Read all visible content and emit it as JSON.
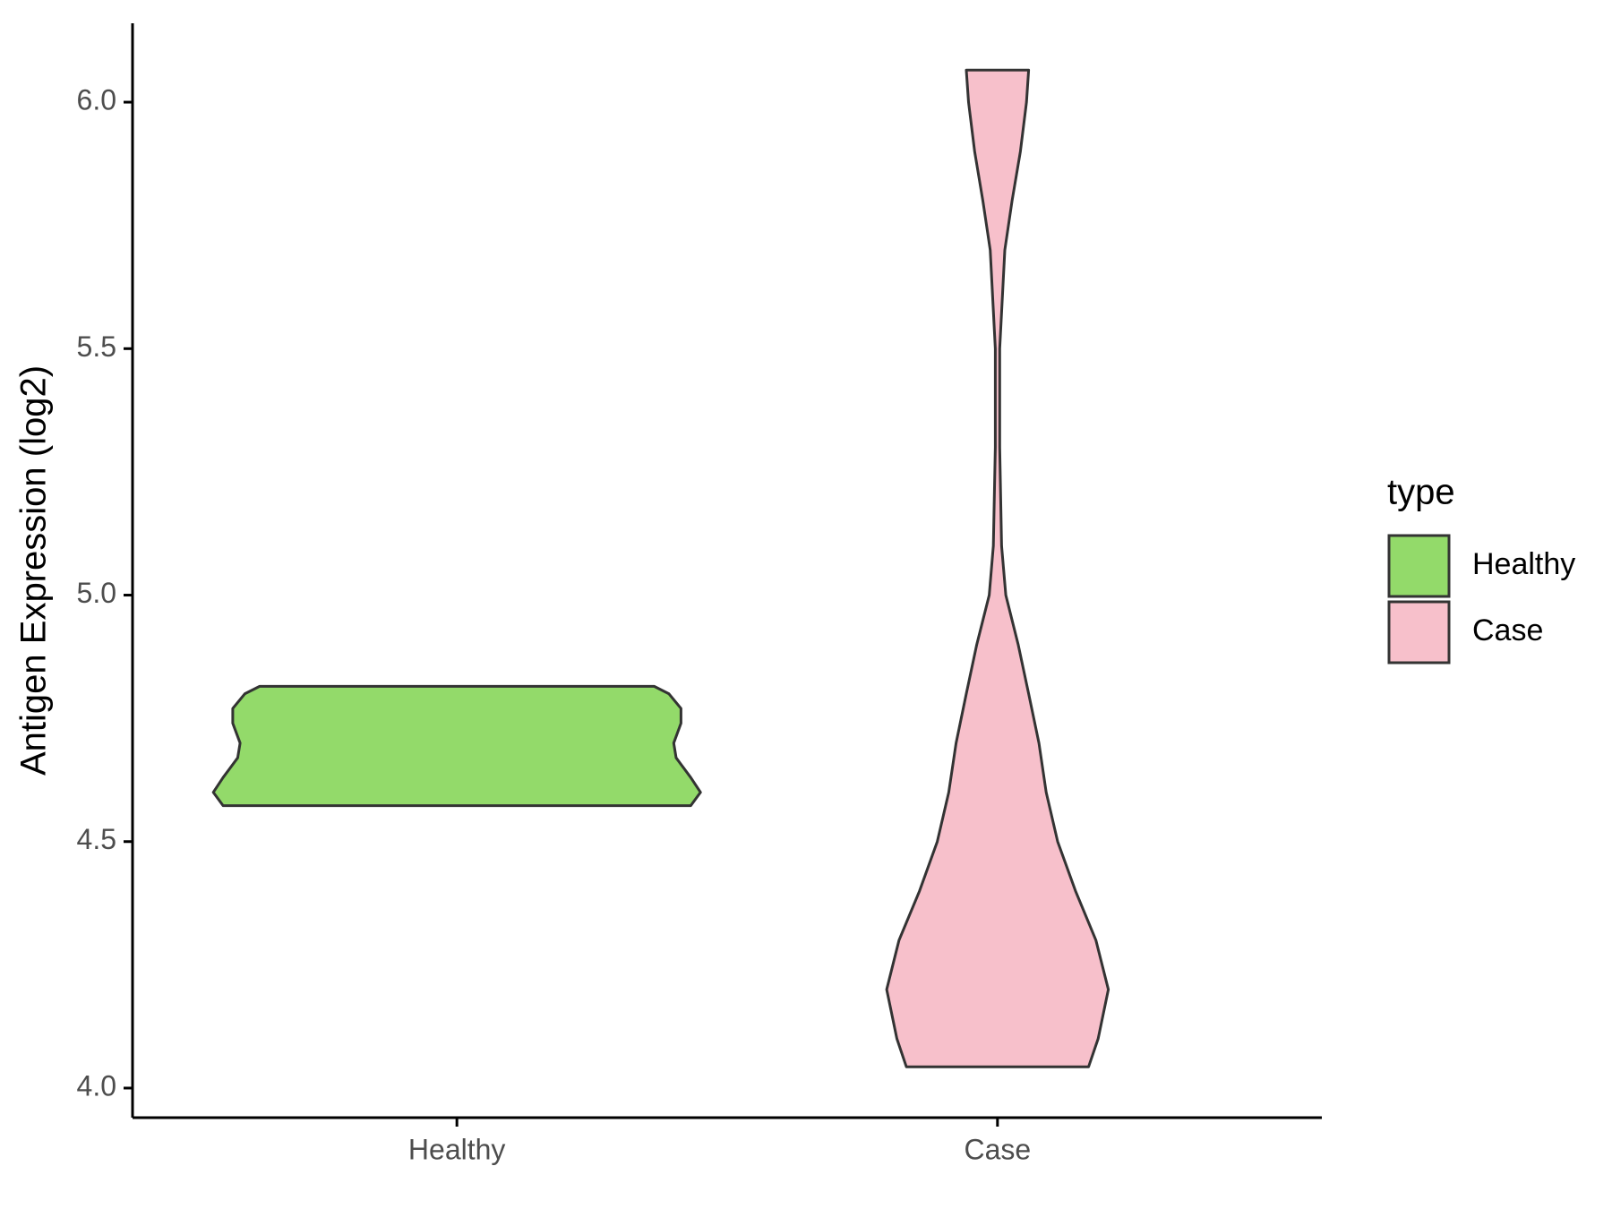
{
  "chart_data": {
    "type": "violin",
    "y_label": "Antigen Expression (log2)",
    "categories": [
      "Healthy",
      "Case"
    ],
    "ylim": [
      3.94,
      6.16
    ],
    "yticks": [
      {
        "value": 4.0,
        "label": "4.0"
      },
      4.5,
      {
        "value": 5.0,
        "label": "5.0"
      },
      5.5,
      {
        "value": 6.0,
        "label": "6.0"
      }
    ],
    "legend_title": "type",
    "legend_position": "right",
    "series": [
      {
        "name": "Healthy",
        "color": "#93da6a",
        "density": {
          "y": [
            4.573,
            4.6,
            4.63,
            4.67,
            4.7,
            4.74,
            4.77,
            4.8,
            4.815
          ],
          "width": [
            0.96,
            1.0,
            0.96,
            0.9,
            0.89,
            0.92,
            0.92,
            0.87,
            0.81
          ]
        }
      },
      {
        "name": "Case",
        "color": "#f7c0cb",
        "density": {
          "y": [
            4.043,
            4.1,
            4.2,
            4.3,
            4.4,
            4.5,
            4.6,
            4.7,
            4.8,
            4.9,
            5.0,
            5.1,
            5.3,
            5.5,
            5.7,
            5.8,
            5.9,
            6.0,
            6.065
          ],
          "width": [
            0.374,
            0.413,
            0.455,
            0.404,
            0.32,
            0.247,
            0.2,
            0.17,
            0.128,
            0.085,
            0.034,
            0.017,
            0.009,
            0.009,
            0.03,
            0.06,
            0.094,
            0.119,
            0.128
          ]
        }
      }
    ]
  }
}
